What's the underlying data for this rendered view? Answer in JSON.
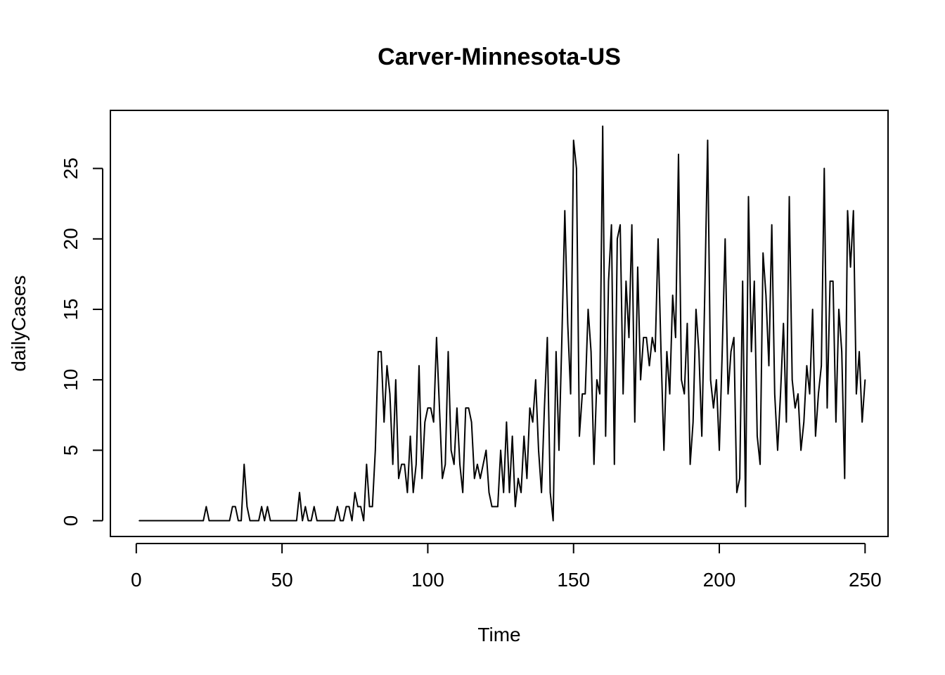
{
  "chart_data": {
    "type": "line",
    "title": "Carver-Minnesota-US",
    "xlabel": "Time",
    "ylabel": "dailyCases",
    "xlim": [
      -8.88,
      257.88
    ],
    "ylim": [
      -1.12,
      29.12
    ],
    "xticks": [
      0,
      50,
      100,
      150,
      200,
      250
    ],
    "xtick_labels": [
      "0",
      "50",
      "100",
      "150",
      "200",
      "250"
    ],
    "yticks": [
      0,
      5,
      10,
      15,
      20,
      25
    ],
    "ytick_labels": [
      "0",
      "5",
      "10",
      "15",
      "20",
      "25"
    ],
    "grid": false,
    "series": [
      {
        "color": "#000000",
        "x_start": 1,
        "values": [
          0,
          0,
          0,
          0,
          0,
          0,
          0,
          0,
          0,
          0,
          0,
          0,
          0,
          0,
          0,
          0,
          0,
          0,
          0,
          0,
          0,
          0,
          0,
          1,
          0,
          0,
          0,
          0,
          0,
          0,
          0,
          0,
          1,
          1,
          0,
          0,
          4,
          1,
          0,
          0,
          0,
          0,
          1,
          0,
          1,
          0,
          0,
          0,
          0,
          0,
          0,
          0,
          0,
          0,
          0,
          2,
          0,
          1,
          0,
          0,
          1,
          0,
          0,
          0,
          0,
          0,
          0,
          0,
          1,
          0,
          0,
          1,
          1,
          0,
          2,
          1,
          1,
          0,
          4,
          1,
          1,
          5,
          12,
          12,
          7,
          11,
          9,
          4,
          10,
          3,
          4,
          4,
          2,
          6,
          2,
          4,
          11,
          3,
          7,
          8,
          8,
          7,
          13,
          8,
          3,
          4,
          12,
          5,
          4,
          8,
          4,
          2,
          8,
          8,
          7,
          3,
          4,
          3,
          4,
          5,
          2,
          1,
          1,
          1,
          5,
          2,
          7,
          2,
          6,
          1,
          3,
          2,
          6,
          3,
          8,
          7,
          10,
          5,
          2,
          8,
          13,
          2,
          0,
          12,
          5,
          13,
          22,
          14,
          9,
          27,
          25,
          6,
          9,
          9,
          15,
          12,
          4,
          10,
          9,
          28,
          6,
          17,
          21,
          4,
          20,
          21,
          9,
          17,
          13,
          21,
          7,
          18,
          10,
          13,
          13,
          11,
          13,
          12,
          20,
          12,
          5,
          12,
          9,
          16,
          13,
          26,
          10,
          9,
          14,
          4,
          7,
          15,
          12,
          6,
          16,
          27,
          10,
          8,
          10,
          5,
          12,
          20,
          9,
          12,
          13,
          2,
          3,
          17,
          1,
          23,
          12,
          17,
          6,
          4,
          19,
          16,
          11,
          21,
          9,
          5,
          9,
          14,
          7,
          23,
          10,
          8,
          9,
          5,
          7,
          11,
          9,
          15,
          6,
          9,
          11,
          25,
          8,
          17,
          17,
          7,
          15,
          12,
          3,
          22,
          18,
          22,
          9,
          12,
          7,
          10
        ]
      }
    ]
  }
}
